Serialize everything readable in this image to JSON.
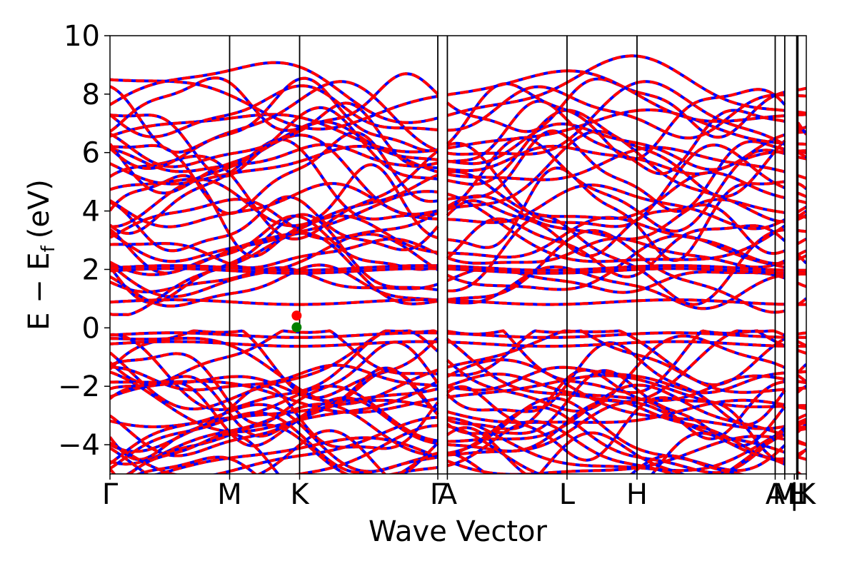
{
  "chart_data": {
    "type": "line",
    "title": "",
    "xlabel": "Wave Vector",
    "ylabel_main": "E − E",
    "ylabel_sub": "f",
    "ylabel_unit": "(eV)",
    "ylim": [
      -5,
      10
    ],
    "yticks": [
      {
        "value": 10,
        "label": "10"
      },
      {
        "value": 8,
        "label": "8"
      },
      {
        "value": 6,
        "label": "6"
      },
      {
        "value": 4,
        "label": "4"
      },
      {
        "value": 2,
        "label": "2"
      },
      {
        "value": 0,
        "label": "0"
      },
      {
        "value": -2,
        "label": "−2"
      },
      {
        "value": -4,
        "label": "−4"
      }
    ],
    "kpath_ticks": [
      {
        "k": 0.0,
        "label": "Γ"
      },
      {
        "k": 1.0,
        "label": "M"
      },
      {
        "k": 1.585,
        "label": "K"
      },
      {
        "k": 2.74,
        "label": "Γ"
      },
      {
        "k": 2.82,
        "label": "A"
      },
      {
        "k": 3.82,
        "label": "L"
      },
      {
        "k": 4.405,
        "label": "H"
      },
      {
        "k": 5.56,
        "label": "A"
      },
      {
        "k": 5.64,
        "label": "M"
      },
      {
        "k": 5.72,
        "label": "|"
      },
      {
        "k": 5.74,
        "label": "L"
      },
      {
        "k": 5.75,
        "label": "H"
      },
      {
        "k": 5.82,
        "label": "K"
      }
    ],
    "xlim": [
      0,
      5.82
    ],
    "series_styles": [
      {
        "color": "#0000ff",
        "style": "solid"
      },
      {
        "color": "#ff0000",
        "style": "dashed"
      }
    ],
    "markers": [
      {
        "k": 1.56,
        "energy": 0.42,
        "color": "#ff0000"
      },
      {
        "k": 1.56,
        "energy": 0.02,
        "color": "#008000"
      }
    ]
  }
}
